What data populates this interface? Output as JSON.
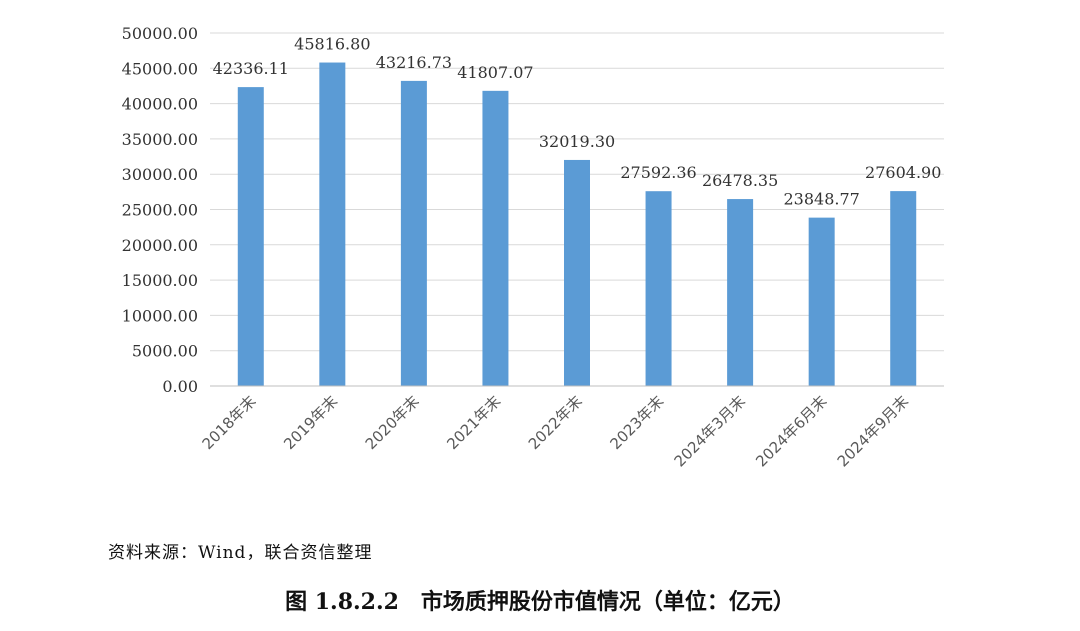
{
  "chart_data": {
    "type": "bar",
    "categories": [
      "2018年末",
      "2019年末",
      "2020年末",
      "2021年末",
      "2022年末",
      "2023年末",
      "2024年3月末",
      "2024年6月末",
      "2024年9月末"
    ],
    "values": [
      42336.11,
      45816.8,
      43216.73,
      41807.07,
      32019.3,
      27592.36,
      26478.35,
      23848.77,
      27604.9
    ],
    "value_labels": [
      "42336.11",
      "45816.80",
      "43216.73",
      "41807.07",
      "32019.30",
      "27592.36",
      "26478.35",
      "23848.77",
      "27604.90"
    ],
    "yticks": [
      "0.00",
      "5000.00",
      "10000.00",
      "15000.00",
      "20000.00",
      "25000.00",
      "30000.00",
      "35000.00",
      "40000.00",
      "45000.00",
      "50000.00"
    ],
    "ylim": [
      0,
      50000
    ],
    "grid": true,
    "bar_color": "#5b9bd5",
    "grid_color": "#d9d9d9"
  },
  "source_note": "资料来源：Wind，联合资信整理",
  "caption": "图 1.8.2.2　市场质押股份市值情况（单位：亿元）"
}
